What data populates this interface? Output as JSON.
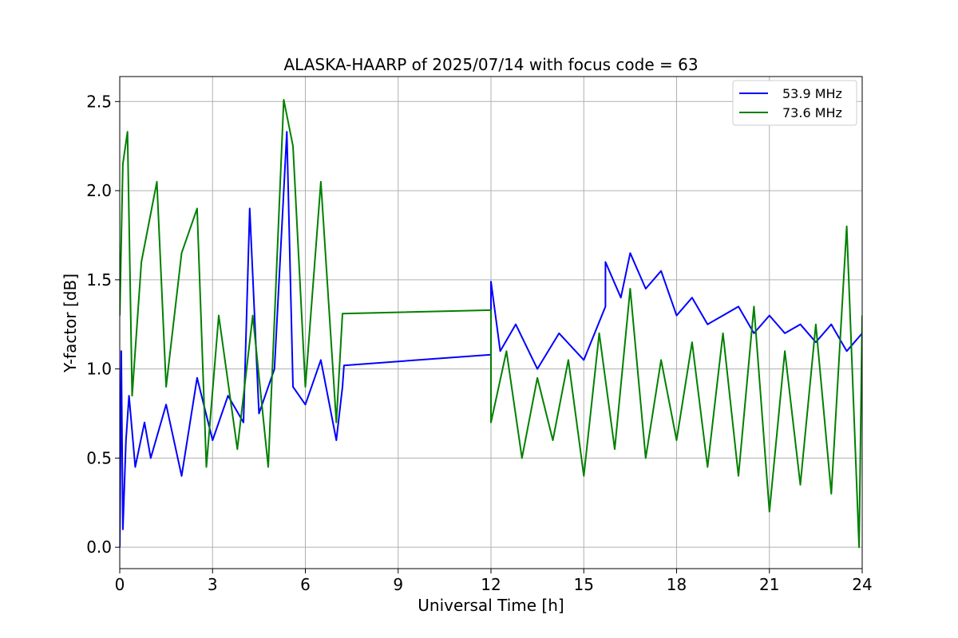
{
  "chart_data": {
    "type": "line",
    "title": "ALASKA-HAARP of 2025/07/14 with focus code = 63",
    "xlabel": "Universal Time [h]",
    "ylabel": "Y-factor [dB]",
    "xlim": [
      0,
      24
    ],
    "ylim": [
      -0.12,
      2.64
    ],
    "xticks": [
      "0",
      "3",
      "6",
      "9",
      "12",
      "15",
      "18",
      "21",
      "24"
    ],
    "yticks": [
      "0.0",
      "0.5",
      "1.0",
      "1.5",
      "2.0",
      "2.5"
    ],
    "grid": true,
    "legend_position": "top-right",
    "series": [
      {
        "name": "53.9 MHz",
        "color": "#0000ff",
        "points": [
          [
            0.0,
            0.0
          ],
          [
            0.05,
            1.1
          ],
          [
            0.1,
            0.1
          ],
          [
            0.2,
            0.6
          ],
          [
            0.3,
            0.85
          ],
          [
            0.5,
            0.45
          ],
          [
            0.8,
            0.7
          ],
          [
            1.0,
            0.5
          ],
          [
            1.5,
            0.8
          ],
          [
            2.0,
            0.4
          ],
          [
            2.5,
            0.95
          ],
          [
            3.0,
            0.6
          ],
          [
            3.5,
            0.85
          ],
          [
            4.0,
            0.7
          ],
          [
            4.2,
            1.9
          ],
          [
            4.5,
            0.75
          ],
          [
            5.0,
            1.0
          ],
          [
            5.4,
            2.33
          ],
          [
            5.6,
            0.9
          ],
          [
            6.0,
            0.8
          ],
          [
            6.5,
            1.05
          ],
          [
            7.0,
            0.6
          ],
          [
            7.2,
            0.9
          ],
          [
            7.25,
            1.02
          ],
          [
            12.0,
            1.08
          ],
          [
            12.0,
            1.49
          ],
          [
            12.3,
            1.1
          ],
          [
            12.8,
            1.25
          ],
          [
            13.5,
            1.0
          ],
          [
            14.2,
            1.2
          ],
          [
            15.0,
            1.05
          ],
          [
            15.7,
            1.35
          ],
          [
            15.7,
            1.6
          ],
          [
            16.2,
            1.4
          ],
          [
            16.5,
            1.65
          ],
          [
            17.0,
            1.45
          ],
          [
            17.5,
            1.55
          ],
          [
            18.0,
            1.3
          ],
          [
            18.5,
            1.4
          ],
          [
            19.0,
            1.25
          ],
          [
            19.5,
            1.3
          ],
          [
            20.0,
            1.35
          ],
          [
            20.5,
            1.2
          ],
          [
            21.0,
            1.3
          ],
          [
            21.5,
            1.2
          ],
          [
            22.0,
            1.25
          ],
          [
            22.5,
            1.15
          ],
          [
            23.0,
            1.25
          ],
          [
            23.5,
            1.1
          ],
          [
            24.0,
            1.2
          ]
        ]
      },
      {
        "name": "73.6 MHz",
        "color": "#008000",
        "points": [
          [
            0.0,
            1.3
          ],
          [
            0.1,
            2.15
          ],
          [
            0.25,
            2.33
          ],
          [
            0.4,
            0.85
          ],
          [
            0.7,
            1.6
          ],
          [
            1.2,
            2.05
          ],
          [
            1.5,
            0.9
          ],
          [
            2.0,
            1.65
          ],
          [
            2.5,
            1.9
          ],
          [
            2.8,
            0.45
          ],
          [
            3.2,
            1.3
          ],
          [
            3.8,
            0.55
          ],
          [
            4.3,
            1.3
          ],
          [
            4.8,
            0.45
          ],
          [
            5.3,
            2.51
          ],
          [
            5.6,
            2.25
          ],
          [
            6.0,
            0.9
          ],
          [
            6.5,
            2.05
          ],
          [
            7.0,
            0.7
          ],
          [
            7.2,
            1.31
          ],
          [
            12.0,
            1.33
          ],
          [
            12.0,
            0.7
          ],
          [
            12.5,
            1.1
          ],
          [
            13.0,
            0.5
          ],
          [
            13.5,
            0.95
          ],
          [
            14.0,
            0.6
          ],
          [
            14.5,
            1.05
          ],
          [
            15.0,
            0.4
          ],
          [
            15.5,
            1.2
          ],
          [
            16.0,
            0.55
          ],
          [
            16.5,
            1.45
          ],
          [
            17.0,
            0.5
          ],
          [
            17.5,
            1.05
          ],
          [
            18.0,
            0.6
          ],
          [
            18.5,
            1.15
          ],
          [
            19.0,
            0.45
          ],
          [
            19.5,
            1.2
          ],
          [
            20.0,
            0.4
          ],
          [
            20.5,
            1.35
          ],
          [
            21.0,
            0.2
          ],
          [
            21.5,
            1.1
          ],
          [
            22.0,
            0.35
          ],
          [
            22.5,
            1.25
          ],
          [
            23.0,
            0.3
          ],
          [
            23.5,
            1.8
          ],
          [
            23.9,
            0.0
          ],
          [
            24.0,
            1.3
          ]
        ]
      }
    ]
  }
}
